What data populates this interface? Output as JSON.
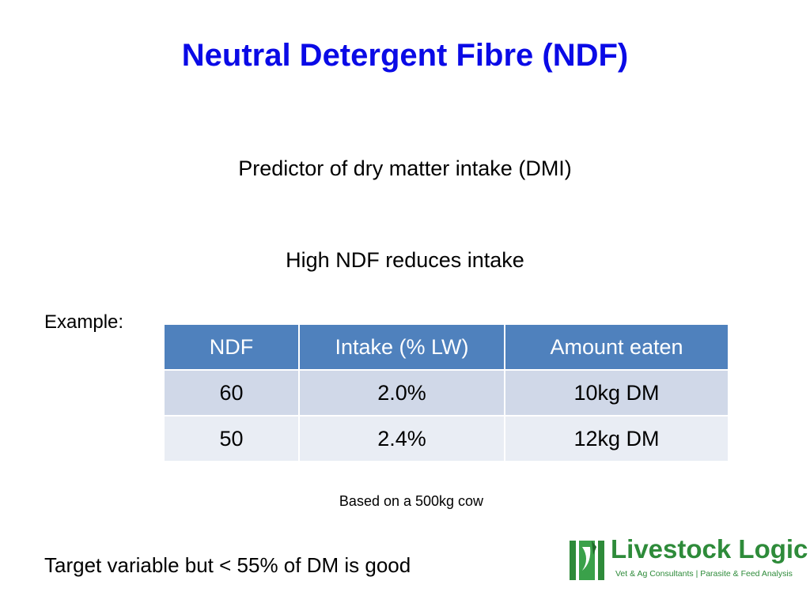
{
  "header": {
    "title": "Neutral Detergent Fibre (NDF)"
  },
  "body": {
    "lines": [
      "Predictor of dry matter intake (DMI)",
      "High NDF reduces intake"
    ],
    "example_label": "Example:"
  },
  "table": {
    "columns": [
      "NDF",
      "Intake (% LW)",
      "Amount eaten"
    ],
    "rows": [
      [
        "60",
        "2.0%",
        "10kg DM"
      ],
      [
        "50",
        "2.4%",
        "12kg DM"
      ]
    ]
  },
  "note": "Based on a 500kg cow",
  "footer": "Target variable but < 55% of DM is good",
  "logo": {
    "name": "Livestock Logic",
    "tagline": "Vet & Ag Consultants | Parasite & Feed Analysis"
  }
}
